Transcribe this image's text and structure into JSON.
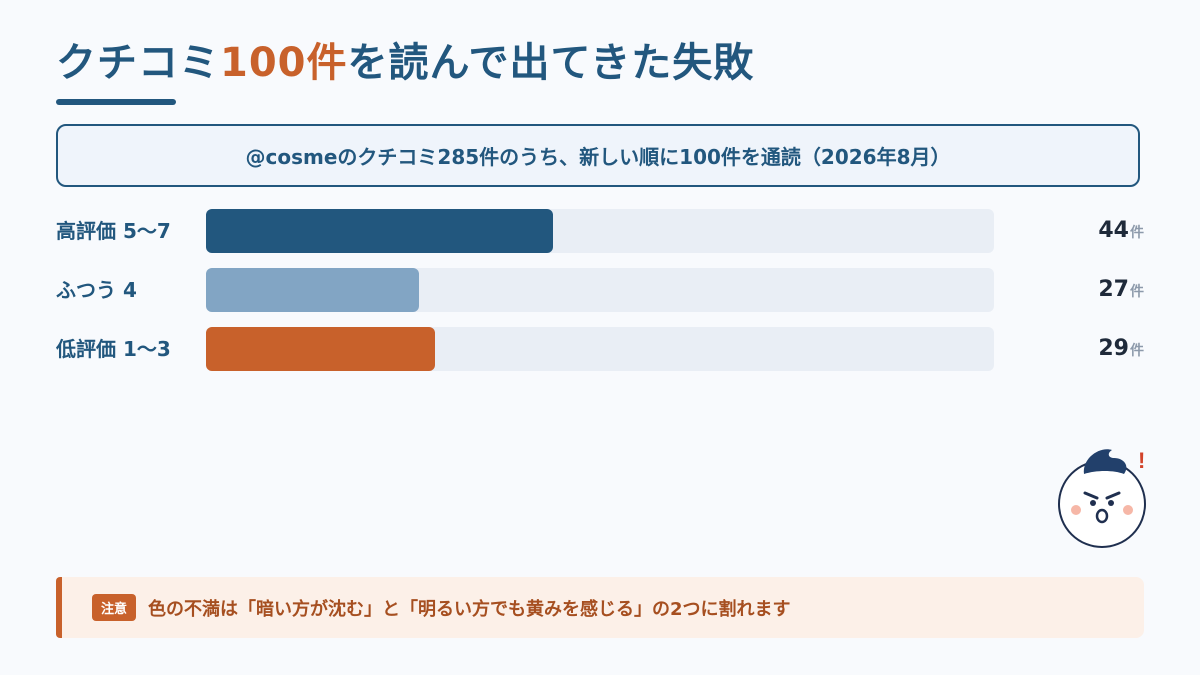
{
  "title": {
    "prefix": "クチコミ",
    "accent": "100件",
    "suffix": "を読んで出てきた失敗"
  },
  "summary": "@cosmeのクチコミ285件のうち、新しい順に100件を通読（2026年8月）",
  "chart_data": {
    "type": "bar",
    "orientation": "horizontal",
    "categories": [
      "高評価 5〜7",
      "ふつう 4",
      "低評価 1〜3"
    ],
    "values": [
      44,
      27,
      29
    ],
    "unit": "件",
    "xlim": [
      0,
      100
    ],
    "colors": [
      "#22577e",
      "#82a5c4",
      "#c8612b"
    ],
    "title": "",
    "xlabel": "",
    "ylabel": ""
  },
  "note": {
    "badge": "注意",
    "text": "色の不満は「暗い方が沈む」と「明るい方でも黄みを感じる」の2つに割れます"
  },
  "mascot": {
    "icon": "worried-face-icon",
    "exclaim": "!"
  }
}
